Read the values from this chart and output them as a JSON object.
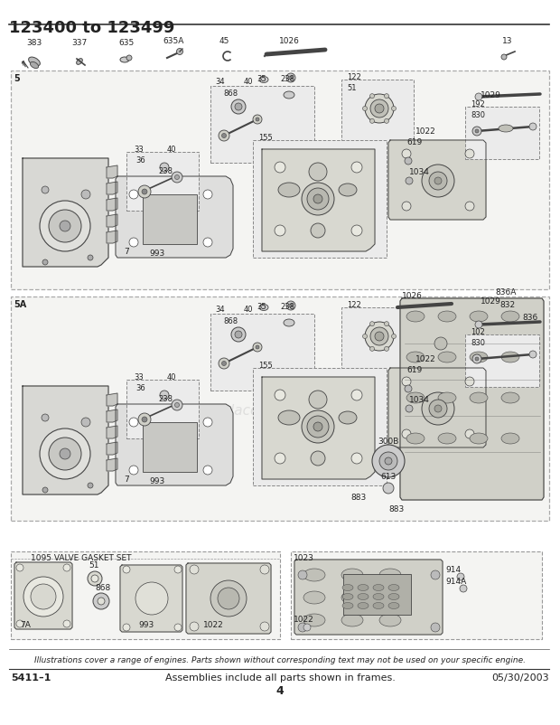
{
  "title": "123400 to 123499",
  "title_fontsize": 13,
  "bg": "#ffffff",
  "page_number": "4",
  "footer_left": "5411–1",
  "footer_center": "Assemblies include all parts shown in frames.",
  "footer_right": "05/30/2003",
  "disclaimer": "Illustrations cover a range of engines. Parts shown without corresponding text may not be used on your specific engine.",
  "label_5": "5",
  "label_5A": "5A",
  "gasket_title": "1095 VALVE GASKET SET",
  "light_gray": "#e8e8e8",
  "mid_gray": "#cccccc",
  "dark_gray": "#888888",
  "box_bg": "#f4f4f2",
  "inner_box_bg": "#ebebeb",
  "line_color": "#444444",
  "text_color": "#222222",
  "border_color": "#999999",
  "dashed_border": "#aaaaaa"
}
